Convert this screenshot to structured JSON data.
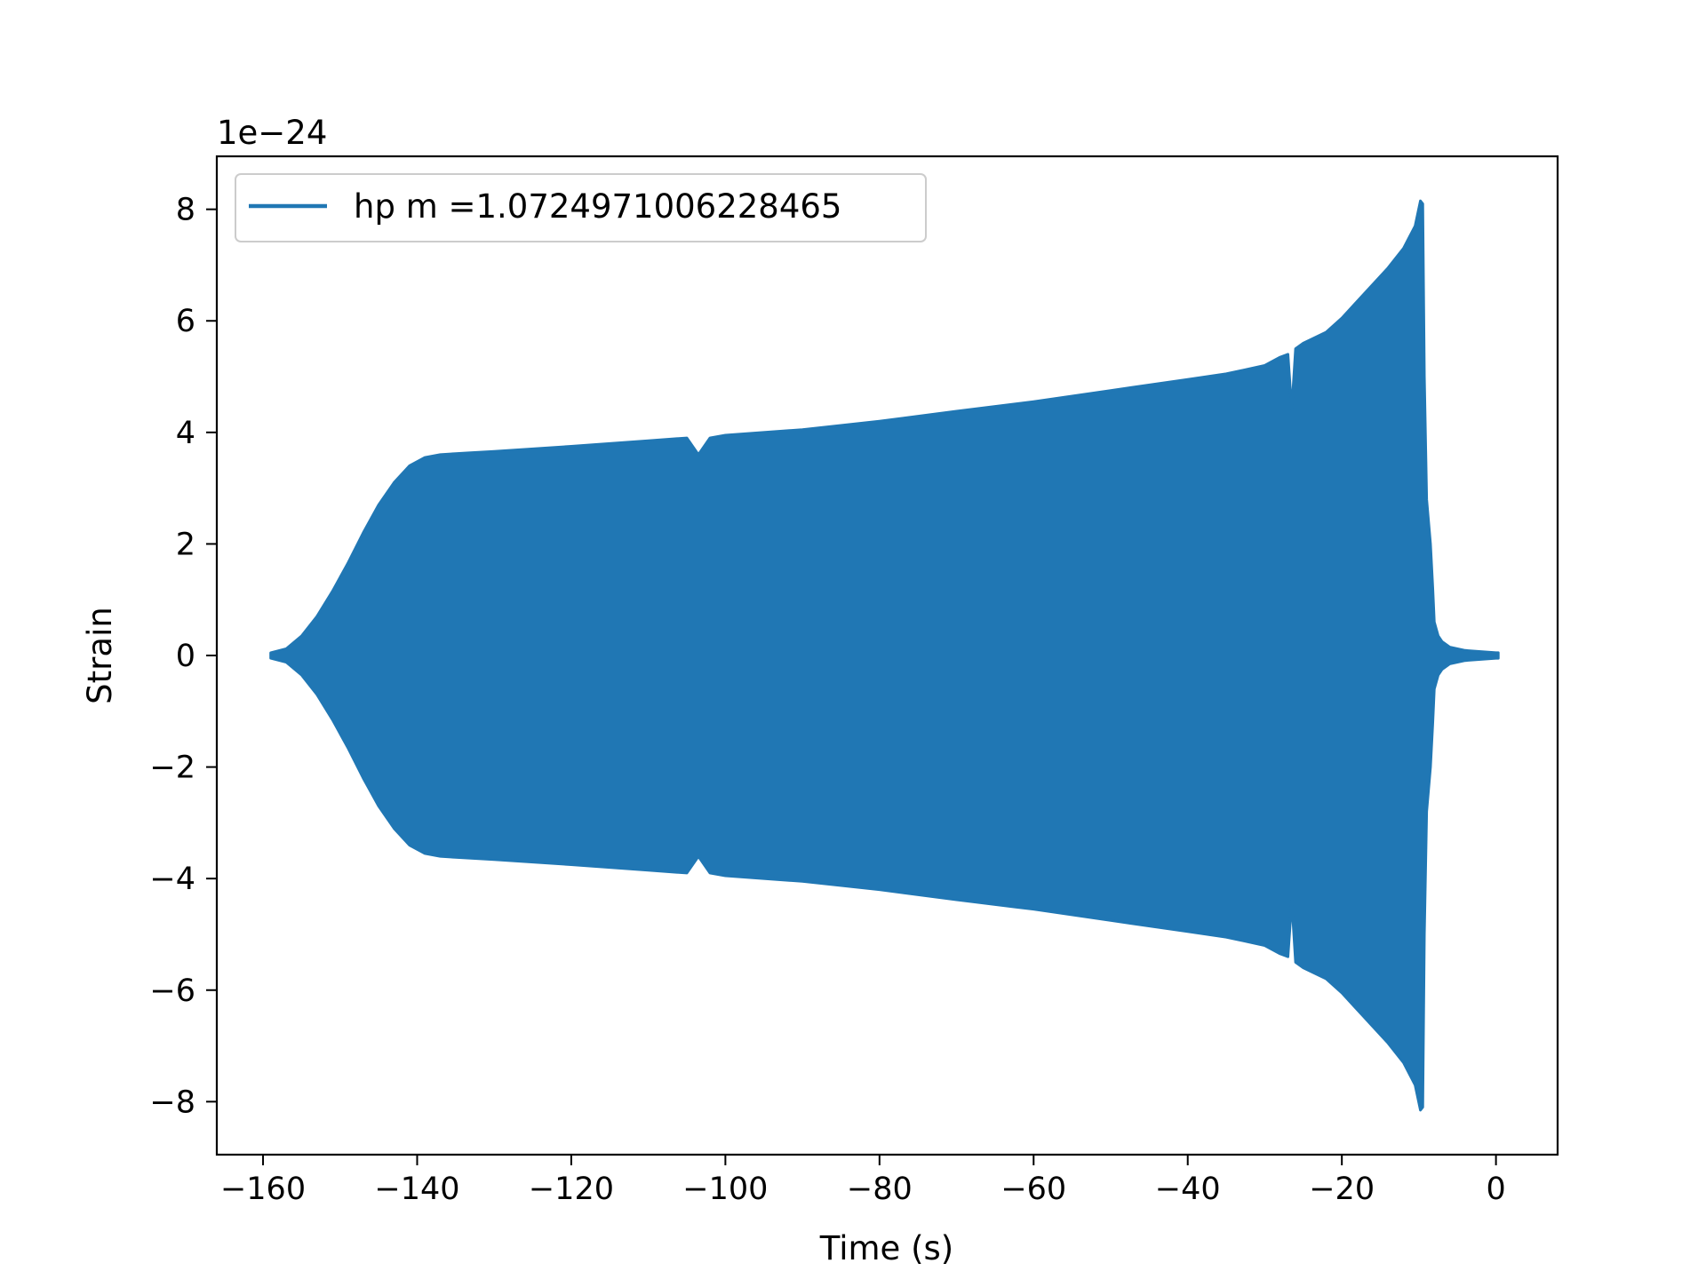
{
  "chart_data": {
    "type": "line",
    "offset_text": "1e−24",
    "xlabel": "Time (s)",
    "ylabel": "Strain",
    "xlim": [
      -166,
      8
    ],
    "ylim": [
      -8.95,
      8.95
    ],
    "x_ticks": [
      -160,
      -140,
      -120,
      -100,
      -80,
      -60,
      -40,
      -20,
      0
    ],
    "x_tick_labels": [
      "−160",
      "−140",
      "−120",
      "−100",
      "−80",
      "−60",
      "−40",
      "−20",
      "0"
    ],
    "y_ticks": [
      8,
      6,
      4,
      2,
      0,
      -2,
      -4,
      -6,
      -8
    ],
    "y_tick_labels": [
      "8",
      "6",
      "4",
      "2",
      "0",
      "−2",
      "−4",
      "−6",
      "−8"
    ],
    "grid": false,
    "legend_position": "upper-left",
    "series": [
      {
        "name": "hp m =1.0724971006228465",
        "color": "#2077b4",
        "rendering": "dense oscillation filling a symmetric envelope",
        "envelope_x": [
          -159,
          -157,
          -155,
          -153,
          -151,
          -149,
          -147,
          -145,
          -143,
          -141,
          -139,
          -137,
          -135,
          -130,
          -120,
          -110,
          -105,
          -103.5,
          -102,
          -100,
          -90,
          -80,
          -70,
          -60,
          -50,
          -40,
          -35,
          -30,
          -28,
          -27,
          -26.5,
          -26,
          -25,
          -22,
          -20,
          -18,
          -16,
          -14,
          -12,
          -10.5,
          -9.8,
          -9.5,
          -9.3,
          -9.0,
          -8.5,
          -8.2,
          -8.0,
          -7.5,
          -7.0,
          -6.0,
          -4.0,
          -2.0,
          0,
          0.3
        ],
        "envelope_amplitude": [
          0.05,
          0.12,
          0.35,
          0.7,
          1.15,
          1.65,
          2.2,
          2.7,
          3.1,
          3.4,
          3.55,
          3.6,
          3.62,
          3.66,
          3.75,
          3.85,
          3.9,
          3.6,
          3.9,
          3.95,
          4.05,
          4.2,
          4.38,
          4.55,
          4.75,
          4.95,
          5.05,
          5.2,
          5.35,
          5.4,
          4.4,
          5.5,
          5.6,
          5.8,
          6.05,
          6.35,
          6.65,
          6.95,
          7.3,
          7.7,
          8.15,
          8.1,
          5.0,
          2.8,
          2.0,
          1.2,
          0.6,
          0.35,
          0.25,
          0.15,
          0.09,
          0.07,
          0.05,
          0.05
        ]
      }
    ]
  }
}
